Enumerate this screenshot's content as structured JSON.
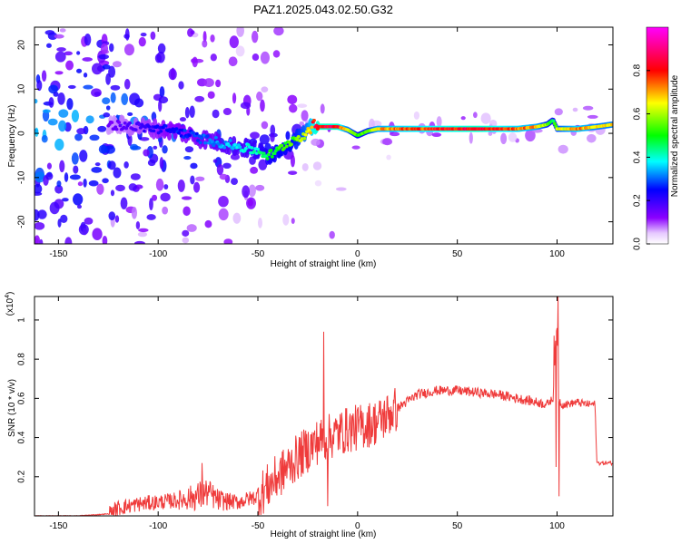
{
  "title": "PAZ1.2025.043.02.50.G32",
  "chart_data": [
    {
      "type": "heatmap",
      "xlabel": "Height of straight line (km)",
      "ylabel": "Frequency (Hz)",
      "xlim": [
        -162,
        128
      ],
      "ylim": [
        -25,
        24
      ],
      "xticks": [
        -150,
        -100,
        -50,
        0,
        50,
        100
      ],
      "yticks": [
        -20,
        -10,
        0,
        10,
        20
      ],
      "colorbar": {
        "label": "Normalized spectral amplitude",
        "range": [
          0,
          1
        ],
        "ticks": [
          0.0,
          0.2,
          0.4,
          0.6,
          0.8
        ],
        "colormap": [
          "#ffffff",
          "#8b00ff",
          "#0000ff",
          "#00ffff",
          "#00ff00",
          "#ffff00",
          "#ff0000",
          "#ff00ff"
        ]
      },
      "ridge": {
        "x": [
          -125,
          -110,
          -100,
          -90,
          -80,
          -70,
          -60,
          -50,
          -45,
          -40,
          -35,
          -30,
          -25,
          -22,
          -20,
          -15,
          -10,
          -5,
          0,
          5,
          10,
          20,
          40,
          60,
          80,
          90,
          95,
          98,
          100,
          110,
          120,
          128
        ],
        "y": [
          2,
          1.5,
          1,
          0.5,
          -1,
          -2,
          -3,
          -4,
          -5,
          -4,
          -2,
          -1,
          0,
          2,
          1.5,
          1.5,
          1.5,
          0.8,
          -0.5,
          0.5,
          1,
          1,
          1,
          1,
          1,
          1.5,
          2,
          3,
          1,
          1,
          1.5,
          2
        ],
        "amp": [
          0.15,
          0.2,
          0.25,
          0.28,
          0.3,
          0.35,
          0.4,
          0.45,
          0.5,
          0.55,
          0.55,
          0.6,
          0.7,
          0.85,
          0.9,
          0.9,
          0.9,
          0.7,
          0.55,
          0.6,
          0.75,
          0.8,
          0.85,
          0.9,
          0.8,
          0.75,
          0.6,
          0.5,
          0.65,
          0.8,
          0.7,
          0.7
        ]
      }
    },
    {
      "type": "line",
      "xlabel": "Height of straight line (km)",
      "ylabel": "SNR (10 * v/v)",
      "multiplier": "(x10",
      "multiplier_exp": "4",
      "xlim": [
        -162,
        128
      ],
      "ylim": [
        0,
        1.12
      ],
      "xticks": [
        -150,
        -100,
        -50,
        0,
        50,
        100
      ],
      "yticks": [
        0.2,
        0.4,
        0.6,
        0.8,
        1
      ],
      "color": "#ef3b3b",
      "series": [
        {
          "x": [
            -162,
            -140,
            -125,
            -120,
            -110,
            -100,
            -90,
            -80,
            -75,
            -70,
            -60,
            -50,
            -45,
            -40,
            -35,
            -30,
            -25,
            -20,
            -15,
            -10,
            -5,
            0,
            10,
            20,
            30,
            40,
            50,
            60,
            70,
            80,
            90,
            95,
            98,
            99,
            100,
            101,
            102,
            105,
            110,
            115,
            119,
            120,
            122,
            128
          ],
          "y": [
            0.0,
            0.0,
            0.01,
            0.04,
            0.06,
            0.07,
            0.08,
            0.1,
            0.12,
            0.08,
            0.07,
            0.1,
            0.15,
            0.2,
            0.25,
            0.3,
            0.34,
            0.38,
            0.4,
            0.42,
            0.44,
            0.45,
            0.48,
            0.55,
            0.62,
            0.64,
            0.64,
            0.63,
            0.62,
            0.6,
            0.58,
            0.57,
            0.6,
            0.85,
            0.95,
            0.6,
            0.57,
            0.57,
            0.58,
            0.57,
            0.57,
            0.27,
            0.27,
            0.27
          ],
          "spikes": [
            {
              "x": -78,
              "y": 0.27
            },
            {
              "x": -17,
              "y": 0.94
            },
            {
              "x": -15,
              "y": 0.05
            },
            {
              "x": 98.5,
              "y": 0.92
            },
            {
              "x": 99.5,
              "y": 0.25
            },
            {
              "x": 100.5,
              "y": 1.12
            },
            {
              "x": 101,
              "y": 0.1
            }
          ]
        }
      ]
    }
  ]
}
